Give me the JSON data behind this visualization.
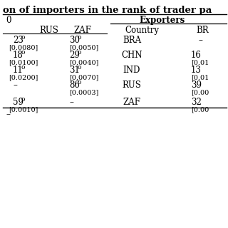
{
  "background_color": "#ffffff",
  "title_line": "on of importers in the rank of trader pa",
  "section_left_header": "0",
  "exporters_header": "Exporters",
  "col_headers_left": [
    "RUS",
    "ZAF"
  ],
  "col_headers_right": [
    "Country",
    "BR"
  ],
  "rows": [
    {
      "rus_rank": "23",
      "rus_val": "[0.0080]",
      "zaf_rank": "30",
      "zaf_val": "[0.0050]",
      "country": "BRA",
      "br_rank": "–",
      "br_val": ""
    },
    {
      "rus_rank": "18",
      "rus_val": "[0.0100]",
      "zaf_rank": "29",
      "zaf_val": "[0.0040]",
      "country": "CHN",
      "br_rank": "16",
      "br_val": "[0.01"
    },
    {
      "rus_rank": "11",
      "rus_val": "[0.0200]",
      "zaf_rank": "31",
      "zaf_val": "[0.0070]",
      "country": "IND",
      "br_rank": "13",
      "br_val": "[0.01"
    },
    {
      "rus_rank": "–",
      "rus_val": "",
      "zaf_rank": "86",
      "zaf_val": "[0.0003]",
      "country": "RUS",
      "br_rank": "39",
      "br_val": "[0.00"
    },
    {
      "rus_rank": "59",
      "rus_val": "[0.0010]",
      "zaf_rank": "–",
      "zaf_val": "",
      "country": "ZAF",
      "br_rank": "32",
      "br_val": "[0.00"
    }
  ],
  "footer": "–",
  "fs_title": 9.5,
  "fs_header": 8.5,
  "fs_col": 8.5,
  "fs_data": 8.5,
  "fs_sub": 7.0,
  "fs_sup": 6.5
}
